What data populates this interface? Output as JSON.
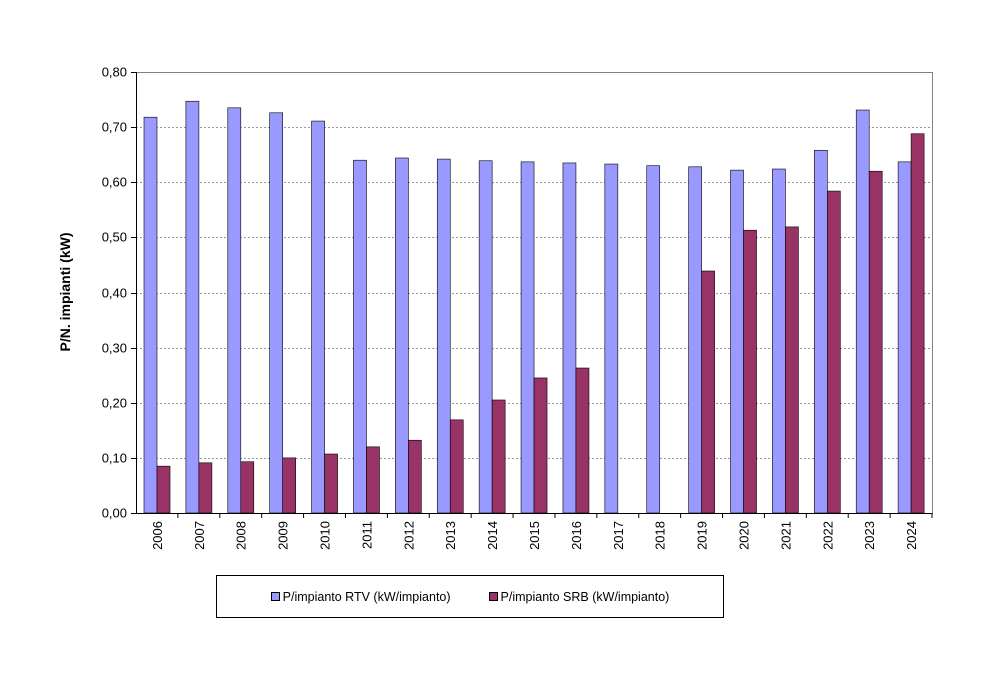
{
  "chart_data": {
    "type": "bar",
    "title": "",
    "xlabel": "",
    "ylabel": "P/N. impianti (kW)",
    "ylim": [
      0,
      0.8
    ],
    "yticks": [
      "0,00",
      "0,10",
      "0,20",
      "0,30",
      "0,40",
      "0,50",
      "0,60",
      "0,70",
      "0,80"
    ],
    "grid": true,
    "legend_position": "bottom",
    "categories": [
      "2006",
      "2007",
      "2008",
      "2009",
      "2010",
      "2011",
      "2012",
      "2013",
      "2014",
      "2015",
      "2016",
      "2017",
      "2018",
      "2019",
      "2020",
      "2021",
      "2022",
      "2023",
      "2024"
    ],
    "series": [
      {
        "name": "P/impianto RTV (kW/impianto)",
        "color": "#9999ff",
        "values": [
          0.718,
          0.747,
          0.735,
          0.726,
          0.711,
          0.64,
          0.644,
          0.642,
          0.639,
          0.637,
          0.635,
          0.633,
          0.63,
          0.628,
          0.622,
          0.624,
          0.658,
          0.731,
          0.637
        ]
      },
      {
        "name": "P/impianto SRB (kW/impianto)",
        "color": "#993366",
        "values": [
          0.085,
          0.091,
          0.093,
          0.1,
          0.107,
          0.12,
          0.132,
          0.169,
          0.205,
          0.245,
          0.263,
          null,
          null,
          0.439,
          0.513,
          0.519,
          0.584,
          0.62,
          0.688
        ]
      }
    ]
  }
}
